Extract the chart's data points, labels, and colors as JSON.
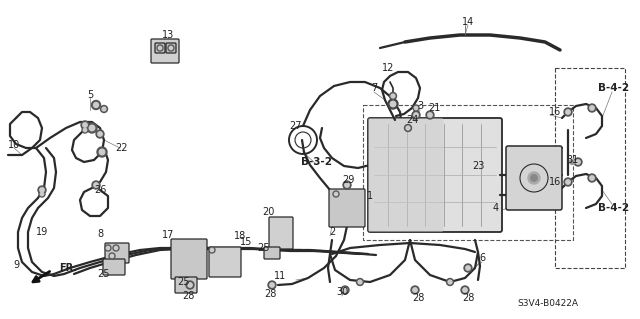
{
  "bg_color": "#ffffff",
  "diagram_code": "S3V4-B0422A",
  "fig_width": 6.4,
  "fig_height": 3.19,
  "dpi": 100,
  "line_color": "#2a2a2a",
  "label_color": "#222222",
  "label_fontsize": 7.5
}
